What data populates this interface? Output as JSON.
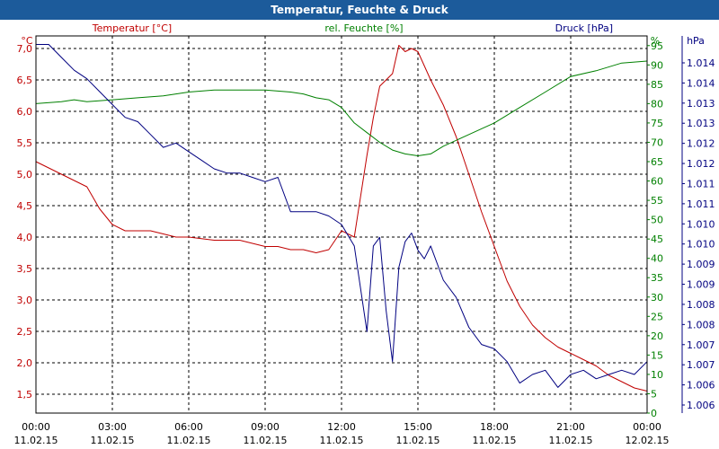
{
  "chart_data": {
    "type": "line",
    "title": "Temperatur, Feuchte & Druck",
    "grid": true,
    "x": {
      "unit": "hours since 11.02.15 00:00",
      "ticks": [
        {
          "time": "00:00",
          "date": "11.02.15"
        },
        {
          "time": "03:00",
          "date": "11.02.15"
        },
        {
          "time": "06:00",
          "date": "11.02.15"
        },
        {
          "time": "09:00",
          "date": "11.02.15"
        },
        {
          "time": "12:00",
          "date": "11.02.15"
        },
        {
          "time": "15:00",
          "date": "11.02.15"
        },
        {
          "time": "18:00",
          "date": "11.02.15"
        },
        {
          "time": "21:00",
          "date": "11.02.15"
        },
        {
          "time": "00:00",
          "date": "12.02.15"
        }
      ],
      "range": [
        "11.02.15 00:00",
        "12.02.15 00:00"
      ]
    },
    "axes": {
      "temperature": {
        "label": "Temperatur [°C]",
        "unit": "°C",
        "range": [
          1.2,
          7.2
        ],
        "ticks": [
          "7,0",
          "6,5",
          "6,0",
          "5,5",
          "5,0",
          "4,5",
          "4,0",
          "3,5",
          "3,0",
          "2,5",
          "2,0",
          "1,5"
        ]
      },
      "humidity": {
        "label": "rel. Feuchte [%]",
        "unit": "%",
        "range": [
          0,
          97.5
        ],
        "ticks": [
          "95",
          "90",
          "85",
          "80",
          "75",
          "70",
          "65",
          "60",
          "55",
          "50",
          "45",
          "40",
          "35",
          "30",
          "25",
          "20",
          "15",
          "10",
          "5",
          "0"
        ]
      },
      "pressure": {
        "label": "Druck [hPa]",
        "unit": "hPa",
        "range": [
          1.0056,
          1.0144
        ],
        "ticks": [
          "1.014",
          "1.014",
          "1.013",
          "1.013",
          "1.012",
          "1.012",
          "1.011",
          "1.011",
          "1.010",
          "1.010",
          "1.009",
          "1.009",
          "1.008",
          "1.008",
          "1.007",
          "1.007",
          "1.006",
          "1.006"
        ]
      }
    },
    "series": [
      {
        "name": "Temperatur [°C]",
        "axis": "temperature",
        "color": "#c00000",
        "x": [
          0,
          0.5,
          1,
          1.5,
          2,
          2.5,
          3,
          3.5,
          4,
          4.5,
          5,
          5.5,
          6,
          7,
          8,
          9,
          9.5,
          10,
          10.5,
          11,
          11.5,
          12,
          12.5,
          13,
          13.25,
          13.5,
          13.75,
          14,
          14.25,
          14.5,
          14.75,
          15,
          15.5,
          16,
          16.5,
          17,
          17.5,
          18,
          18.5,
          19,
          19.5,
          20,
          20.5,
          21,
          21.5,
          22,
          22.5,
          23,
          23.5,
          24
        ],
        "values": [
          5.2,
          5.1,
          5.0,
          4.9,
          4.8,
          4.45,
          4.2,
          4.1,
          4.1,
          4.1,
          4.05,
          4.0,
          4.0,
          3.95,
          3.95,
          3.85,
          3.85,
          3.8,
          3.8,
          3.75,
          3.8,
          4.1,
          4.0,
          5.3,
          5.9,
          6.4,
          6.5,
          6.6,
          7.05,
          6.95,
          7.0,
          6.95,
          6.5,
          6.1,
          5.6,
          5.0,
          4.4,
          3.85,
          3.3,
          2.9,
          2.6,
          2.4,
          2.25,
          2.15,
          2.05,
          1.95,
          1.8,
          1.7,
          1.6,
          1.55
        ]
      },
      {
        "name": "rel. Feuchte [%]",
        "axis": "humidity",
        "color": "#008000",
        "x": [
          0,
          1,
          1.5,
          2,
          3,
          4,
          5,
          6,
          7,
          8,
          9,
          10,
          10.5,
          11,
          11.5,
          12,
          12.5,
          13,
          13.5,
          14,
          14.5,
          15,
          15.5,
          16,
          17,
          18,
          19,
          20,
          21,
          22,
          23,
          24
        ],
        "values": [
          80,
          80.5,
          81,
          80.5,
          81,
          81.5,
          82,
          83,
          83.5,
          83.5,
          83.5,
          83,
          82.5,
          81.5,
          81,
          79,
          75,
          72.5,
          70,
          68,
          67,
          66.5,
          67,
          69,
          72,
          75,
          79,
          83,
          87,
          88.5,
          90.5,
          91
        ]
      },
      {
        "name": "Druck [hPa]",
        "axis": "pressure",
        "color": "#000080",
        "x": [
          0,
          0.5,
          1,
          1.5,
          2,
          2.5,
          3,
          3.5,
          4,
          4.5,
          5,
          5.5,
          6,
          6.5,
          7,
          7.5,
          8,
          8.5,
          9,
          9.5,
          10,
          10.5,
          11,
          11.5,
          12,
          12.5,
          13,
          13.25,
          13.5,
          13.75,
          14,
          14.25,
          14.5,
          14.75,
          15,
          15.25,
          15.5,
          16,
          16.5,
          17,
          17.5,
          18,
          18.5,
          19,
          19.5,
          20,
          20.5,
          21,
          21.5,
          22,
          22.5,
          23,
          23.5,
          24
        ],
        "values": [
          1.0142,
          1.0142,
          1.0139,
          1.0136,
          1.0134,
          1.0131,
          1.0128,
          1.0125,
          1.0124,
          1.0121,
          1.0118,
          1.0119,
          1.0117,
          1.0115,
          1.0113,
          1.0112,
          1.0112,
          1.0111,
          1.011,
          1.0111,
          1.0103,
          1.0103,
          1.0103,
          1.0102,
          1.01,
          1.0095,
          1.0075,
          1.0095,
          1.0097,
          1.008,
          1.0068,
          1.009,
          1.0096,
          1.0098,
          1.0094,
          1.0092,
          1.0095,
          1.0087,
          1.0083,
          1.0076,
          1.0072,
          1.0071,
          1.0068,
          1.0063,
          1.0065,
          1.0066,
          1.0062,
          1.0065,
          1.0066,
          1.0064,
          1.0065,
          1.0066,
          1.0065,
          1.0068
        ]
      }
    ]
  }
}
